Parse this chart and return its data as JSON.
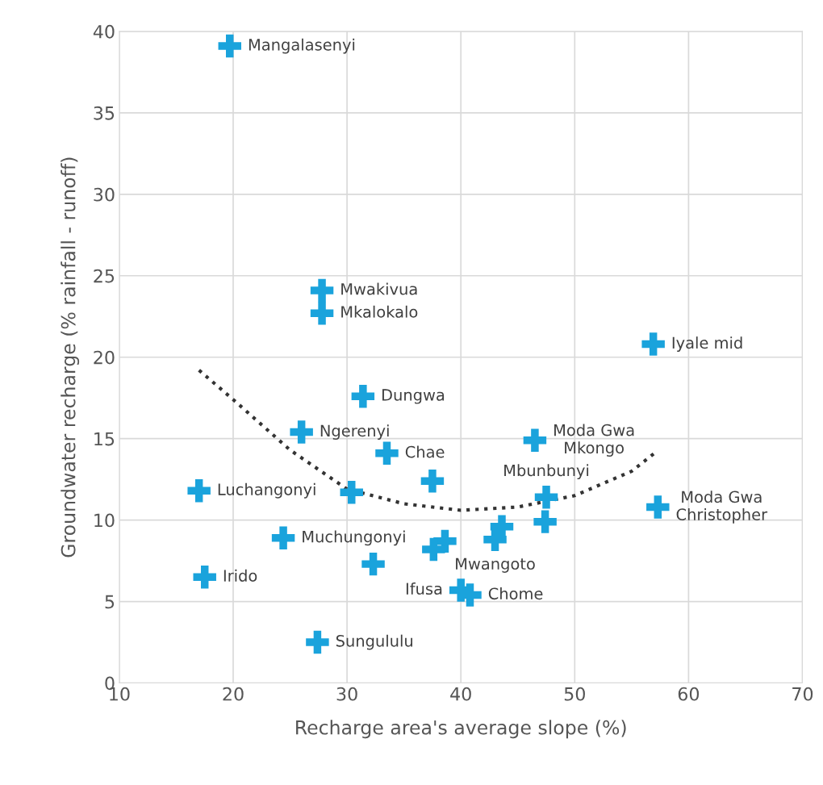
{
  "chart_data": {
    "type": "scatter",
    "xlabel": "Recharge area's average slope (%)",
    "ylabel": "Groundwater recharge (% rainfall - runoff)",
    "xlim": [
      10,
      70
    ],
    "xticks": [
      10,
      20,
      30,
      40,
      50,
      60,
      70
    ],
    "ylim": [
      0,
      40
    ],
    "yticks": [
      0,
      5,
      10,
      15,
      20,
      25,
      30,
      35,
      40
    ],
    "grid": true,
    "series": [
      {
        "color": "#1aa3dc",
        "marker": "cross",
        "x": [
          19.7,
          27.8,
          27.8,
          56.9,
          31.4,
          26.0,
          33.5,
          46.5,
          37.5,
          17.0,
          30.4,
          47.5,
          47.4,
          57.3,
          43.6,
          43.0,
          24.4,
          38.6,
          37.6,
          32.3,
          17.5,
          40.0,
          40.8,
          27.4
        ],
        "values": [
          39.1,
          24.1,
          22.7,
          20.8,
          17.6,
          15.4,
          14.1,
          14.9,
          12.4,
          11.8,
          11.7,
          11.4,
          9.9,
          10.8,
          9.6,
          8.8,
          8.9,
          8.7,
          8.2,
          7.3,
          6.5,
          5.7,
          5.4,
          2.5
        ]
      },
      {
        "type": "line",
        "color": "#333333",
        "line_style": "dotted",
        "x": [
          17,
          20,
          25,
          30,
          35,
          40,
          45,
          50,
          55,
          57
        ],
        "values": [
          19.2,
          17.4,
          14.3,
          11.9,
          11.0,
          10.6,
          10.8,
          11.5,
          13.0,
          14.1
        ]
      }
    ],
    "annotations": [
      {
        "text": "Mangalasenyi",
        "x": 19.7,
        "y": 39.1
      },
      {
        "text": "Mwakivua",
        "x": 27.8,
        "y": 24.1
      },
      {
        "text": "Mkalokalo",
        "x": 27.8,
        "y": 22.7
      },
      {
        "text": "Iyale mid",
        "x": 56.9,
        "y": 20.8
      },
      {
        "text": "Dungwa",
        "x": 31.4,
        "y": 17.6
      },
      {
        "text": "Moda Gwa\nMkongo",
        "x": 46.5,
        "y": 14.9
      },
      {
        "text": "Ngerenyi",
        "x": 26.0,
        "y": 15.4
      },
      {
        "text": "Chae",
        "x": 33.5,
        "y": 14.1
      },
      {
        "text": "Mbunbunyi",
        "x": 47.5,
        "y": 11.4
      },
      {
        "text": "Luchangonyi",
        "x": 17.0,
        "y": 11.8
      },
      {
        "text": "Moda Gwa\nChristopher",
        "x": 57.3,
        "y": 10.8
      },
      {
        "text": "Muchungonyi",
        "x": 24.4,
        "y": 8.9
      },
      {
        "text": "Mwangoto",
        "x": 43.0,
        "y": 8.8
      },
      {
        "text": "Irido",
        "x": 17.5,
        "y": 6.5
      },
      {
        "text": "Ifusa",
        "x": 40.0,
        "y": 5.7
      },
      {
        "text": "Chome",
        "x": 40.8,
        "y": 5.4
      },
      {
        "text": "Sungululu",
        "x": 27.4,
        "y": 2.5
      }
    ]
  }
}
